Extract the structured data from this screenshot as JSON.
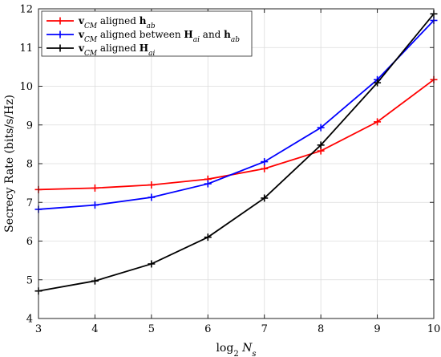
{
  "chart_data": {
    "type": "line",
    "xlabel_base": "log",
    "xlabel_sub": "2",
    "xlabel_var": "N",
    "xlabel_var_sub": "s",
    "ylabel": "Secrecy Rate (bits/s/Hz)",
    "xlim": [
      3,
      10
    ],
    "ylim": [
      4,
      12
    ],
    "xticks": [
      3,
      4,
      5,
      6,
      7,
      8,
      9,
      10
    ],
    "yticks": [
      4,
      5,
      6,
      7,
      8,
      9,
      10,
      11,
      12
    ],
    "grid": true,
    "legend_position": "top-left",
    "x": [
      3,
      4,
      5,
      6,
      7,
      8,
      9,
      10
    ],
    "series": [
      {
        "legend_label": "v_CM aligned h_ab",
        "legend_parts": {
          "v": "v",
          "vsub": "CM",
          "mid": " aligned ",
          "h1": "h",
          "h1sub": "ab"
        },
        "color": "#ff0000",
        "values": [
          7.33,
          7.37,
          7.45,
          7.6,
          7.87,
          8.33,
          9.08,
          10.17
        ]
      },
      {
        "legend_label": "v_CM aligned between H_ai and h_ab",
        "legend_parts": {
          "v": "v",
          "vsub": "CM",
          "mid": " aligned between ",
          "h1": "H",
          "h1sub": "ai",
          "and": " and ",
          "h2": "h",
          "h2sub": "ab"
        },
        "color": "#0000ff",
        "values": [
          6.82,
          6.93,
          7.13,
          7.48,
          8.05,
          8.93,
          10.17,
          11.7
        ]
      },
      {
        "legend_label": "v_CM aligned H_ai",
        "legend_parts": {
          "v": "v",
          "vsub": "CM",
          "mid": " aligned ",
          "h1": "H",
          "h1sub": "ai"
        },
        "color": "#000000",
        "values": [
          4.71,
          4.97,
          5.41,
          6.1,
          7.11,
          8.48,
          10.09,
          11.87
        ]
      }
    ]
  }
}
